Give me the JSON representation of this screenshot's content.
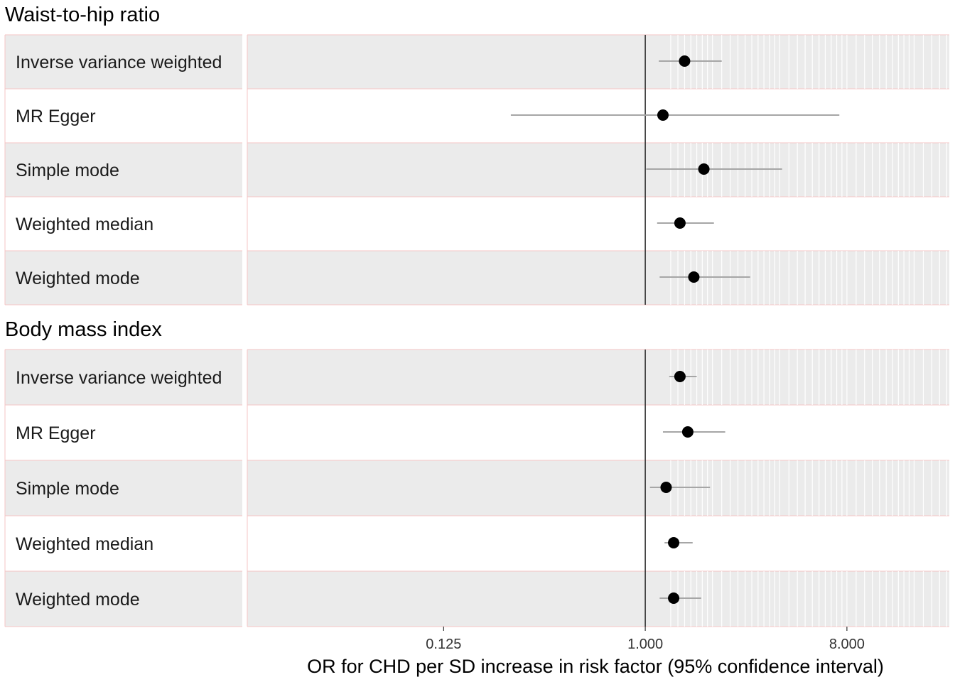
{
  "chart_data": {
    "type": "forest",
    "xlabel": "OR for CHD per SD increase in risk factor (95% confidence interval)",
    "x_scale": "log2",
    "xlim": [
      0.0165,
      23.0
    ],
    "x_ticks": [
      0.125,
      1,
      8
    ],
    "x_tick_labels": [
      "0.125",
      "1.000",
      "8.000"
    ],
    "reference_line": 1.0,
    "colors": {
      "row_shade": "#ebebeb",
      "row_border": "#f4c4c4",
      "gridline": "#ffffff",
      "ci_line": "#a6a6a6",
      "point": "#000000",
      "ref_line": "#333333"
    },
    "panels": [
      {
        "title": "Waist-to-hip ratio",
        "rows": [
          {
            "method": "Inverse variance weighted",
            "or": 1.5,
            "lower": 1.15,
            "upper": 2.2
          },
          {
            "method": "MR Egger",
            "or": 1.2,
            "lower": 0.25,
            "upper": 7.4
          },
          {
            "method": "Simple mode",
            "or": 1.83,
            "lower": 1.01,
            "upper": 4.1
          },
          {
            "method": "Weighted median",
            "or": 1.43,
            "lower": 1.13,
            "upper": 2.03
          },
          {
            "method": "Weighted mode",
            "or": 1.65,
            "lower": 1.16,
            "upper": 2.95
          }
        ]
      },
      {
        "title": "Body mass index",
        "rows": [
          {
            "method": "Inverse variance weighted",
            "or": 1.43,
            "lower": 1.28,
            "upper": 1.7
          },
          {
            "method": "MR Egger",
            "or": 1.55,
            "lower": 1.2,
            "upper": 2.28
          },
          {
            "method": "Simple mode",
            "or": 1.24,
            "lower": 1.05,
            "upper": 1.95
          },
          {
            "method": "Weighted median",
            "or": 1.34,
            "lower": 1.22,
            "upper": 1.63
          },
          {
            "method": "Weighted mode",
            "or": 1.34,
            "lower": 1.16,
            "upper": 1.78
          }
        ]
      }
    ]
  }
}
